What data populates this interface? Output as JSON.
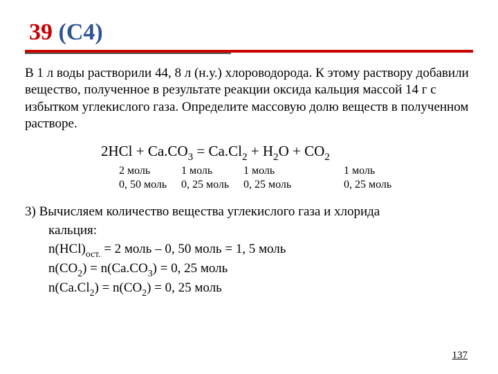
{
  "title": {
    "number": "39",
    "code": "(С4)"
  },
  "problem_text": "В 1 л воды растворили 44, 8 л (н.у.) хлороводорода. К этому раствору добавили вещество, полученное в результате реакции оксида кальция массой 14 г с избытком углекислого газа. Определите массовую долю веществ в полученном растворе.",
  "equation": {
    "lhs1": "2HCl",
    "lhs2": "Ca.CO",
    "lhs2sub": "3",
    "rhs1": "Ca.Cl",
    "rhs1sub": "2",
    "rhs2": "H",
    "rhs2sub": "2",
    "rhs2b": "O",
    "rhs3": "CO",
    "rhs3sub": "2"
  },
  "moles": {
    "row1": {
      "c1": "2 моль",
      "c2": "1 моль",
      "c3": "1 моль",
      "c4": "1 моль"
    },
    "row2": {
      "c1": "0, 50 моль",
      "c2": "0, 25 моль",
      "c3": "0, 25 моль",
      "c4": "0, 25 моль"
    }
  },
  "calc": {
    "line1": "3) Вычисляем количество вещества углекислого газа и хлорида",
    "line1b": "кальция:",
    "line2a": "n(HCl)",
    "line2sub": "ост.",
    "line2b": " = 2 моль – 0, 50 моль = 1, 5 моль",
    "line3a": "n(CO",
    "line3s1": "2",
    "line3b": ") = n(Ca.CO",
    "line3s2": "3",
    "line3c": ") = 0, 25 моль",
    "line4a": "n(Ca.Cl",
    "line4s1": "2",
    "line4b": ") = n(CO",
    "line4s2": "2",
    "line4c": ") = 0, 25 моль"
  },
  "page": "137",
  "colors": {
    "title_red": "#cc0000",
    "title_blue": "#2f5496",
    "rule_red": "#cc0000",
    "rule_gray": "#555555",
    "text": "#000000",
    "bg": "#ffffff"
  },
  "fontsize": {
    "title": 34,
    "body": 19,
    "equation": 21,
    "moles": 16,
    "pagenum": 15
  }
}
